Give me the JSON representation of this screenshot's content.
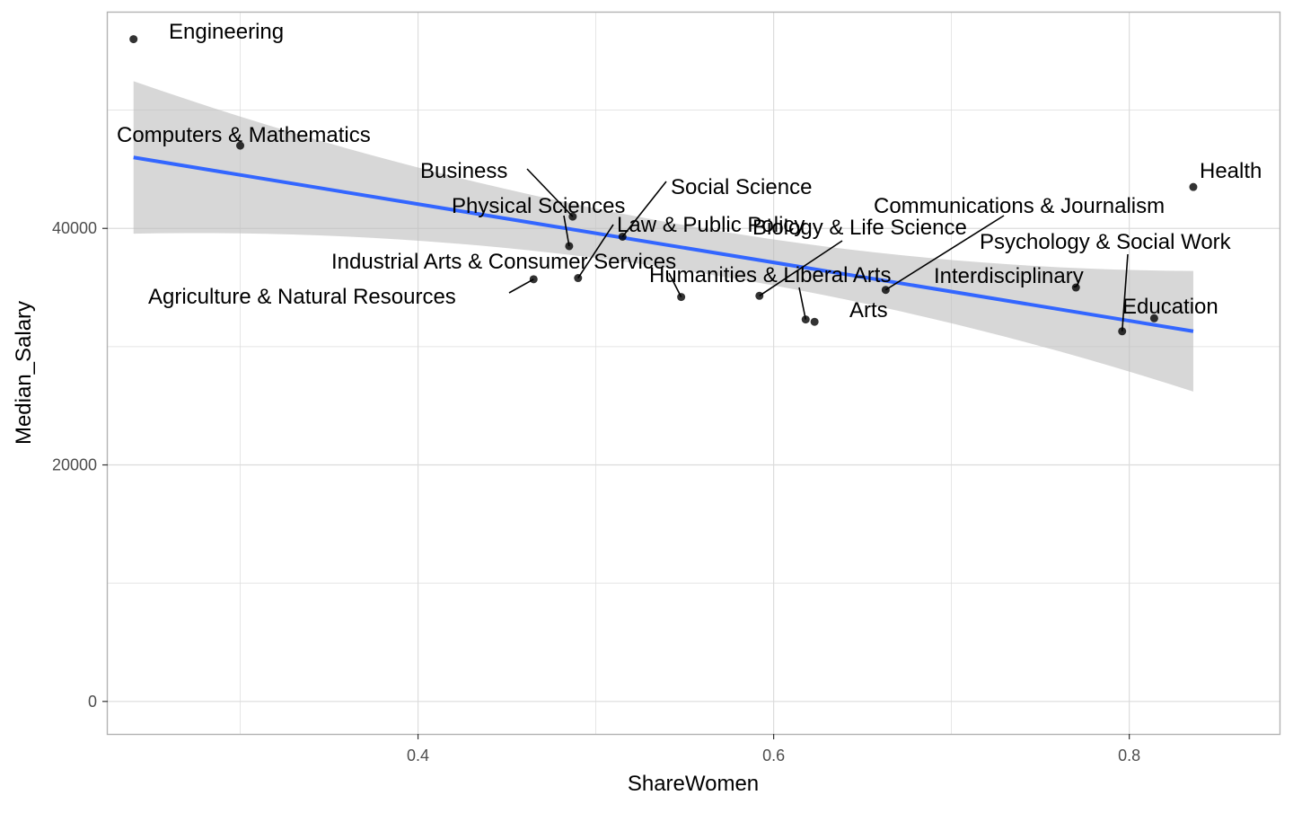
{
  "chart_data": {
    "type": "scatter",
    "title": "",
    "xlabel": "ShareWomen",
    "ylabel": "Median_Salary",
    "xlim": [
      0.2255,
      0.8845
    ],
    "ylim": [
      -2750,
      58250
    ],
    "x_ticks": [
      0.4,
      0.6,
      0.8
    ],
    "x_tick_labels": [
      "0.4",
      "0.6",
      "0.8"
    ],
    "x_minor_ticks": [
      0.3,
      0.5,
      0.7
    ],
    "y_ticks": [
      0,
      20000,
      40000
    ],
    "y_tick_labels": [
      "0",
      "20000",
      "40000"
    ],
    "y_minor_ticks": [
      10000,
      30000,
      50000
    ],
    "grid": true,
    "legend": "none",
    "colors": {
      "points": "#000000",
      "fit_line": "#3366FF",
      "confidence_band": "#BDBDBD",
      "grid": "#DCDCDC",
      "panel_border": "#B3B3B3"
    },
    "points": [
      {
        "label": "Engineering",
        "x": 0.24,
        "y": 56000
      },
      {
        "label": "Computers & Mathematics",
        "x": 0.3,
        "y": 47000
      },
      {
        "label": "Health",
        "x": 0.836,
        "y": 43500
      },
      {
        "label": "Business",
        "x": 0.487,
        "y": 41000
      },
      {
        "label": "Social Science",
        "x": 0.515,
        "y": 39300
      },
      {
        "label": "Physical Sciences",
        "x": 0.485,
        "y": 38500
      },
      {
        "label": "Law & Public Policy",
        "x": 0.49,
        "y": 35800
      },
      {
        "label": "Biology & Life Science",
        "x": 0.592,
        "y": 34300
      },
      {
        "label": "Industrial Arts & Consumer Services",
        "x": 0.548,
        "y": 34200
      },
      {
        "label": "Agriculture & Natural Resources",
        "x": 0.465,
        "y": 35700
      },
      {
        "label": "Communications & Journalism",
        "x": 0.663,
        "y": 34800
      },
      {
        "label": "Interdisciplinary",
        "x": 0.77,
        "y": 35000
      },
      {
        "label": "Humanities & Liberal Arts",
        "x": 0.618,
        "y": 32300
      },
      {
        "label": "Arts",
        "x": 0.623,
        "y": 32100
      },
      {
        "label": "Education",
        "x": 0.814,
        "y": 32400
      },
      {
        "label": "Psychology & Social Work",
        "x": 0.796,
        "y": 31300
      }
    ],
    "fit": {
      "method": "linear",
      "x": [
        0.24,
        0.836
      ],
      "y": [
        46000,
        31300
      ],
      "ci_lower": [
        39600,
        26300
      ],
      "ci_upper": [
        52500,
        36500
      ]
    }
  }
}
